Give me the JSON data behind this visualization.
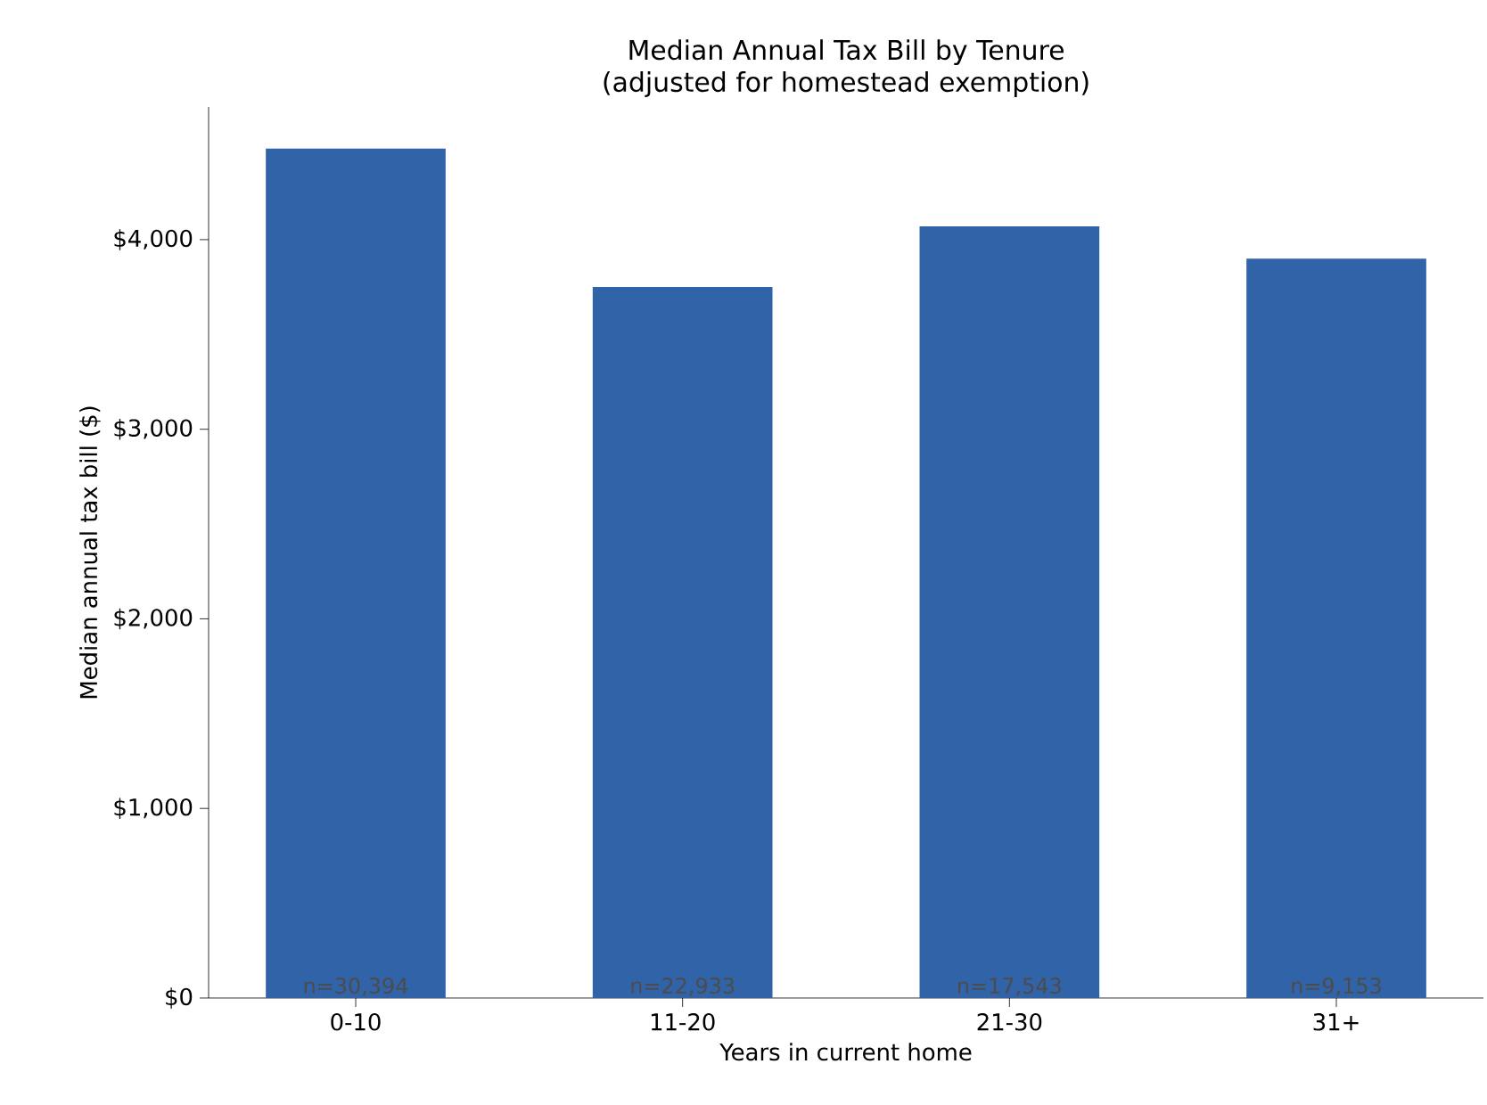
{
  "chart_data": {
    "type": "bar",
    "title": "Median Annual Tax Bill by Tenure",
    "subtitle": "(adjusted for homestead exemption)",
    "xlabel": "Years in current home",
    "ylabel": "Median annual tax bill ($)",
    "categories": [
      "0-10",
      "11-20",
      "21-30",
      "31+"
    ],
    "values": [
      4480,
      3750,
      4070,
      3900
    ],
    "color": "#3063a8",
    "ylim": [
      0,
      4700
    ],
    "yticks": [
      {
        "value": 0,
        "label": "$0"
      },
      {
        "value": 1000,
        "label": "$1,000"
      },
      {
        "value": 2000,
        "label": "$2,000"
      },
      {
        "value": 3000,
        "label": "$3,000"
      },
      {
        "value": 4000,
        "label": "$4,000"
      }
    ],
    "annotations": [
      {
        "text": "n=30,394",
        "x": "0-10",
        "y": 0
      },
      {
        "text": "n=22,933",
        "x": "11-20",
        "y": 0
      },
      {
        "text": "n=17,543",
        "x": "21-30",
        "y": 0
      },
      {
        "text": "n=9,153",
        "x": "31+",
        "y": 0
      }
    ],
    "grid": false
  }
}
